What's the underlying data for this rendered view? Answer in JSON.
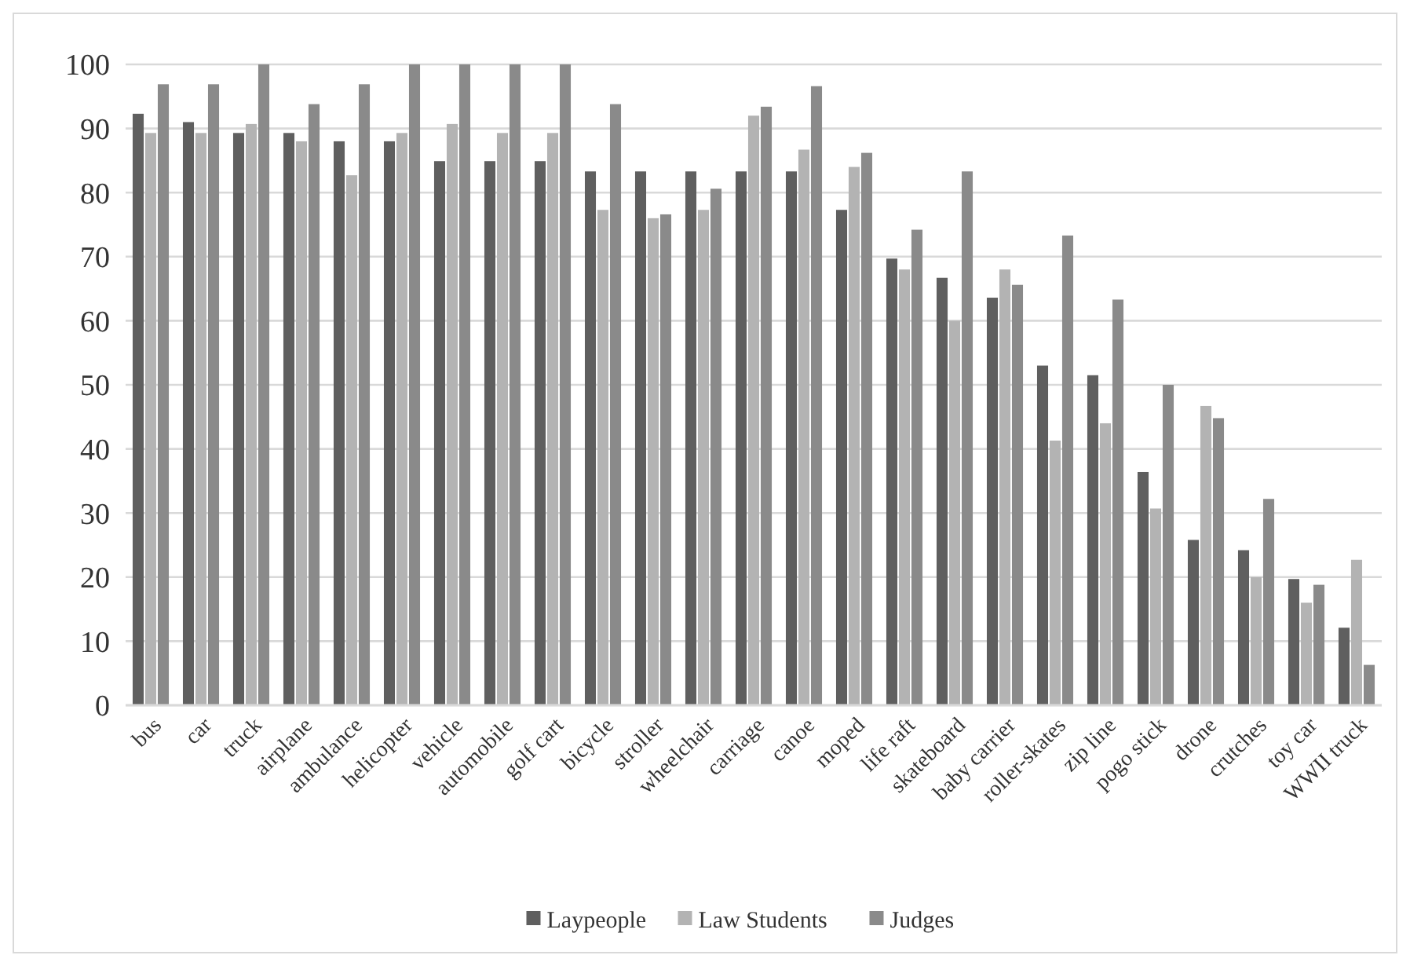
{
  "chart_data": {
    "type": "bar",
    "categories": [
      "bus",
      "car",
      "truck",
      "airplane",
      "ambulance",
      "helicopter",
      "vehicle",
      "automobile",
      "golf cart",
      "bicycle",
      "stroller",
      "wheelchair",
      "carriage",
      "canoe",
      "moped",
      "life raft",
      "skateboard",
      "baby carrier",
      "roller-skates",
      "zip line",
      "pogo stick",
      "drone",
      "crutches",
      "toy car",
      "WWII truck"
    ],
    "series": [
      {
        "name": "Laypeople",
        "color": "#5f5f5f",
        "values": [
          92.3,
          91,
          89.3,
          89.3,
          88,
          88,
          84.9,
          84.9,
          84.9,
          83.3,
          83.3,
          83.3,
          83.3,
          83.3,
          77.3,
          69.7,
          66.7,
          63.6,
          53,
          51.5,
          36.4,
          25.8,
          24.2,
          19.7,
          12.1
        ]
      },
      {
        "name": "Law Students",
        "color": "#b3b3b3",
        "values": [
          89.3,
          89.3,
          90.7,
          88,
          82.7,
          89.3,
          90.7,
          89.3,
          89.3,
          77.3,
          76,
          77.3,
          92,
          86.7,
          84,
          68,
          60,
          68,
          41.3,
          44,
          30.7,
          46.7,
          20,
          16,
          22.7
        ]
      },
      {
        "name": "Judges",
        "color": "#8a8a8a",
        "values": [
          96.9,
          96.9,
          100,
          93.8,
          96.9,
          100,
          100,
          100,
          100,
          93.8,
          76.6,
          80.6,
          93.4,
          96.6,
          86.2,
          74.2,
          83.3,
          65.6,
          73.3,
          63.3,
          50,
          44.8,
          32.2,
          18.8,
          6.3
        ]
      }
    ],
    "ylim": [
      0,
      100
    ],
    "yticks": [
      0,
      10,
      20,
      30,
      40,
      50,
      60,
      70,
      80,
      90,
      100
    ],
    "grid": "y",
    "legend": "bottom"
  }
}
